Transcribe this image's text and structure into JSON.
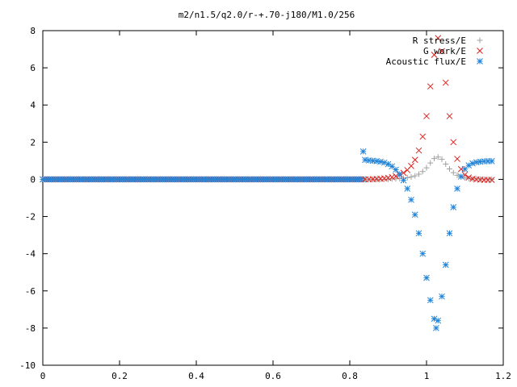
{
  "chart_data": {
    "type": "scatter",
    "title": "m2/n1.5/q2.0/r-+.70-j180/M1.0/256",
    "xlabel": "",
    "ylabel": "",
    "xlim": [
      0,
      1.2
    ],
    "ylim": [
      -10,
      8
    ],
    "xticks": [
      "0",
      "0.2",
      "0.4",
      "0.6",
      "0.8",
      "1",
      "1.2"
    ],
    "yticks": [
      "-10",
      "-8",
      "-6",
      "-4",
      "-2",
      "0",
      "2",
      "4",
      "6",
      "8"
    ],
    "legend_position": "top-right",
    "grid": false,
    "series": [
      {
        "name": "R stress/E",
        "marker": "plus",
        "color": "#a0a0a0",
        "points": [
          [
            0.84,
            0.0
          ],
          [
            0.85,
            0.0
          ],
          [
            0.86,
            0.0
          ],
          [
            0.87,
            0.0
          ],
          [
            0.88,
            0.0
          ],
          [
            0.89,
            0.0
          ],
          [
            0.9,
            0.01
          ],
          [
            0.91,
            0.02
          ],
          [
            0.92,
            0.03
          ],
          [
            0.93,
            0.04
          ],
          [
            0.94,
            0.06
          ],
          [
            0.95,
            0.09
          ],
          [
            0.96,
            0.13
          ],
          [
            0.97,
            0.19
          ],
          [
            0.98,
            0.28
          ],
          [
            0.99,
            0.42
          ],
          [
            1.0,
            0.62
          ],
          [
            1.01,
            0.88
          ],
          [
            1.02,
            1.12
          ],
          [
            1.03,
            1.2
          ],
          [
            1.04,
            1.08
          ],
          [
            1.05,
            0.82
          ],
          [
            1.06,
            0.56
          ],
          [
            1.07,
            0.36
          ],
          [
            1.08,
            0.22
          ],
          [
            1.09,
            0.13
          ],
          [
            1.1,
            0.08
          ],
          [
            1.11,
            0.05
          ],
          [
            1.12,
            0.03
          ],
          [
            1.13,
            0.02
          ],
          [
            1.14,
            0.01
          ],
          [
            1.15,
            0.0
          ],
          [
            1.16,
            0.0
          ],
          [
            1.17,
            0.0
          ]
        ]
      },
      {
        "name": "G work/E",
        "marker": "cross",
        "color": "#e0201b",
        "points": [
          [
            0.84,
            0.0
          ],
          [
            0.85,
            0.0
          ],
          [
            0.86,
            0.01
          ],
          [
            0.87,
            0.02
          ],
          [
            0.88,
            0.03
          ],
          [
            0.89,
            0.05
          ],
          [
            0.9,
            0.08
          ],
          [
            0.91,
            0.12
          ],
          [
            0.92,
            0.17
          ],
          [
            0.93,
            0.25
          ],
          [
            0.94,
            0.35
          ],
          [
            0.95,
            0.5
          ],
          [
            0.96,
            0.72
          ],
          [
            0.97,
            1.05
          ],
          [
            0.98,
            1.55
          ],
          [
            0.99,
            2.3
          ],
          [
            1.0,
            3.4
          ],
          [
            1.01,
            5.0
          ],
          [
            1.02,
            6.7
          ],
          [
            1.03,
            7.6
          ],
          [
            1.04,
            6.9
          ],
          [
            1.05,
            5.2
          ],
          [
            1.06,
            3.4
          ],
          [
            1.07,
            2.0
          ],
          [
            1.08,
            1.1
          ],
          [
            1.09,
            0.55
          ],
          [
            1.1,
            0.25
          ],
          [
            1.11,
            0.1
          ],
          [
            1.12,
            0.03
          ],
          [
            1.13,
            0.0
          ],
          [
            1.14,
            -0.02
          ],
          [
            1.15,
            -0.03
          ],
          [
            1.16,
            -0.03
          ],
          [
            1.17,
            -0.03
          ]
        ]
      },
      {
        "name": "Acoustic flux/E",
        "marker": "star",
        "color": "#1f83d9",
        "points": [
          [
            0.835,
            1.5
          ],
          [
            0.84,
            1.05
          ],
          [
            0.85,
            1.02
          ],
          [
            0.86,
            1.0
          ],
          [
            0.87,
            0.98
          ],
          [
            0.88,
            0.95
          ],
          [
            0.89,
            0.9
          ],
          [
            0.9,
            0.82
          ],
          [
            0.91,
            0.7
          ],
          [
            0.92,
            0.52
          ],
          [
            0.93,
            0.28
          ],
          [
            0.94,
            -0.05
          ],
          [
            0.95,
            -0.5
          ],
          [
            0.96,
            -1.1
          ],
          [
            0.97,
            -1.9
          ],
          [
            0.98,
            -2.9
          ],
          [
            0.99,
            -4.0
          ],
          [
            1.0,
            -5.3
          ],
          [
            1.01,
            -6.5
          ],
          [
            1.02,
            -7.5
          ],
          [
            1.025,
            -8.0
          ],
          [
            1.03,
            -7.6
          ],
          [
            1.04,
            -6.3
          ],
          [
            1.05,
            -4.6
          ],
          [
            1.06,
            -2.9
          ],
          [
            1.07,
            -1.5
          ],
          [
            1.08,
            -0.5
          ],
          [
            1.09,
            0.15
          ],
          [
            1.1,
            0.55
          ],
          [
            1.11,
            0.75
          ],
          [
            1.12,
            0.86
          ],
          [
            1.13,
            0.92
          ],
          [
            1.14,
            0.95
          ],
          [
            1.15,
            0.97
          ],
          [
            1.16,
            0.98
          ],
          [
            1.17,
            0.98
          ]
        ]
      }
    ]
  }
}
